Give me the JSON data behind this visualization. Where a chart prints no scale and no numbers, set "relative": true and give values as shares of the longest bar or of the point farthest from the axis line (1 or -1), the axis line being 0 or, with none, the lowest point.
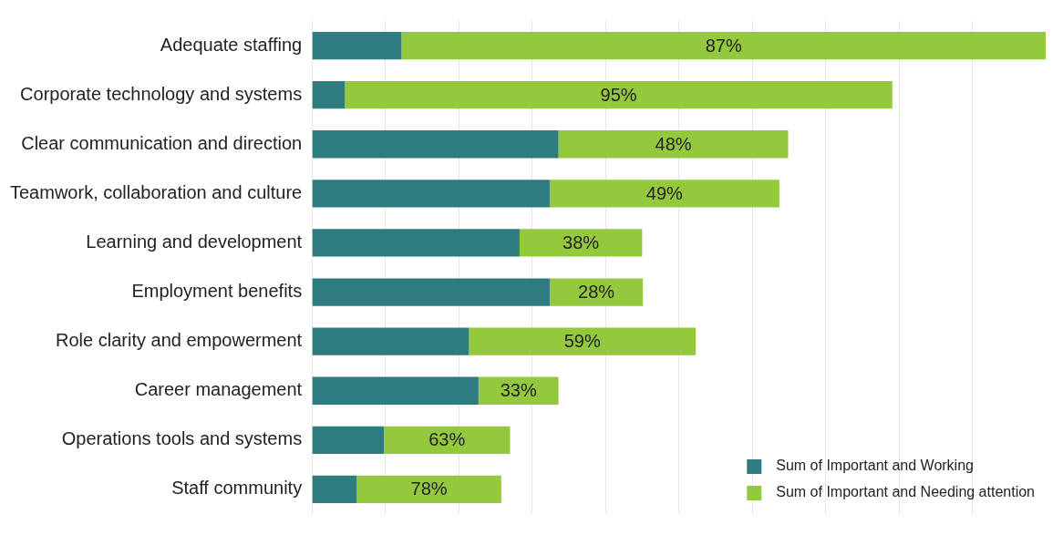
{
  "chart_data": {
    "type": "bar",
    "orientation": "horizontal",
    "stacked": true,
    "relative": true,
    "grid": true,
    "legend": "bottom right",
    "categories": [
      "Adequate staffing",
      "Corporate technology and systems",
      "Clear communication and direction",
      "Teamwork, collaboration and culture",
      "Learning and development",
      "Employment benefits",
      "Role clarity and empowerment",
      "Career management",
      "Operations tools and systems",
      "Staff community"
    ],
    "series": [
      {
        "name": "Sum of Important and Working",
        "color": "#2e7b80",
        "values": [
          0.122,
          0.045,
          0.336,
          0.324,
          0.283,
          0.324,
          0.214,
          0.227,
          0.098,
          0.061
        ]
      },
      {
        "name": "Sum of Important and Needing attention",
        "color": "#95c93d",
        "values": [
          0.878,
          0.746,
          0.313,
          0.313,
          0.167,
          0.127,
          0.309,
          0.109,
          0.172,
          0.197
        ]
      }
    ],
    "annotations": [
      "87%",
      "95%",
      "48%",
      "49%",
      "38%",
      "28%",
      "59%",
      "33%",
      "63%",
      "78%"
    ]
  }
}
